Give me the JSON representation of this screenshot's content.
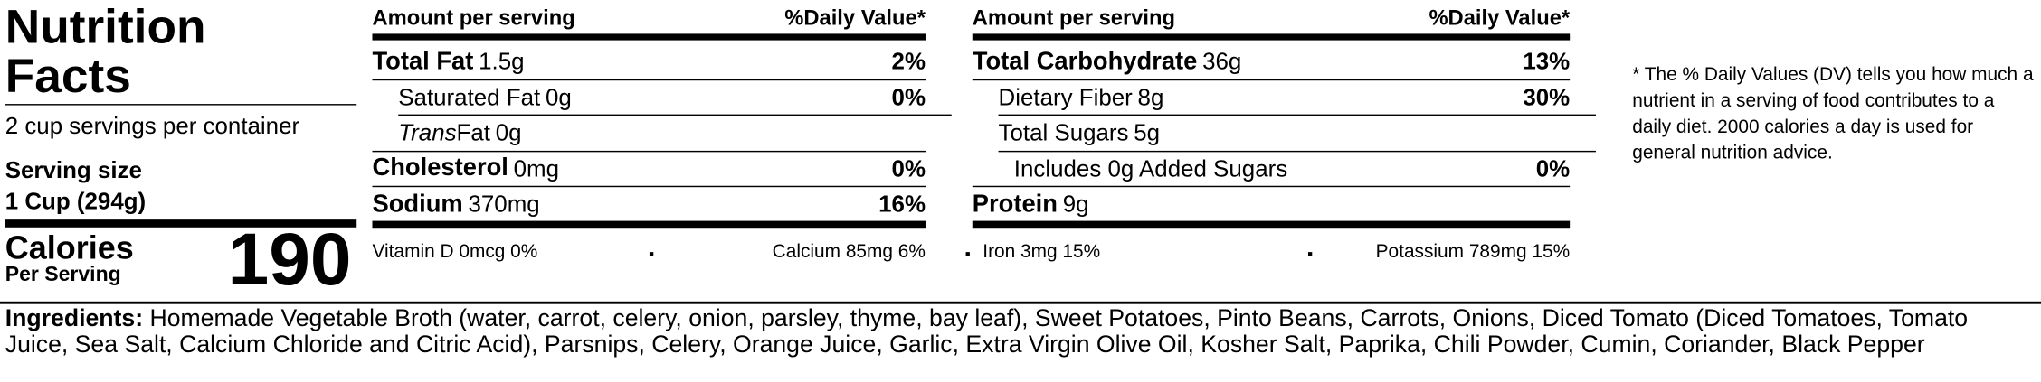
{
  "title": "Nutrition Facts",
  "servings_per_container": "2 cup servings per container",
  "serving_size": {
    "label": "Serving size",
    "value": "1 Cup (294g)"
  },
  "calories": {
    "label": "Calories",
    "sublabel": "Per Serving",
    "value": "190"
  },
  "columns": [
    {
      "header": {
        "amount": "Amount per serving",
        "daily_value": "%Daily Value*"
      },
      "rows": [
        {
          "level": 0,
          "name": "Total Fat",
          "amount": "1.5g",
          "daily_value": "2%"
        },
        {
          "level": 1,
          "name": "Saturated Fat",
          "amount": "0g",
          "daily_value": "0%"
        },
        {
          "level": 1,
          "name_italic": "Trans",
          "name": "Fat",
          "amount": "0g"
        },
        {
          "level": 0,
          "name": "Cholesterol",
          "amount": "0mg",
          "daily_value": "0%"
        },
        {
          "level": 0,
          "name": "Sodium",
          "amount": "370mg",
          "daily_value": "16%"
        }
      ],
      "vitamins": [
        "Vitamin D 0mcg 0%",
        "Calcium 85mg 6%"
      ]
    },
    {
      "header": {
        "amount": "Amount per serving",
        "daily_value": "%Daily Value*"
      },
      "rows": [
        {
          "level": 0,
          "name": "Total Carbohydrate",
          "amount": "36g",
          "daily_value": "13%"
        },
        {
          "level": 1,
          "name": "Dietary Fiber",
          "amount": "8g",
          "daily_value": "30%"
        },
        {
          "level": 1,
          "name": "Total Sugars",
          "amount": "5g"
        },
        {
          "level": 2,
          "name": "Includes 0g Added Sugars",
          "daily_value": "0%"
        },
        {
          "level": 0,
          "name": "Protein",
          "amount": "9g"
        }
      ],
      "vitamins": [
        "Iron 3mg 15%",
        "Potassium 789mg 15%"
      ]
    }
  ],
  "footnote": "* The % Daily Values (DV) tells you how much a nutrient in a serving of food contributes to a daily diet. 2000 calories a day is used for general nutrition advice.",
  "ingredients": {
    "label": "Ingredients:",
    "text": "Homemade Vegetable Broth (water, carrot, celery, onion, parsley, thyme, bay leaf), Sweet Potatoes, Pinto Beans, Carrots, Onions, Diced Tomato (Diced Tomatoes, Tomato Juice, Sea Salt, Calcium Chloride and Citric Acid), Parsnips, Celery, Orange Juice, Garlic, Extra Virgin Olive Oil, Kosher Salt, Paprika, Chili Powder, Cumin, Coriander, Black Pepper"
  }
}
